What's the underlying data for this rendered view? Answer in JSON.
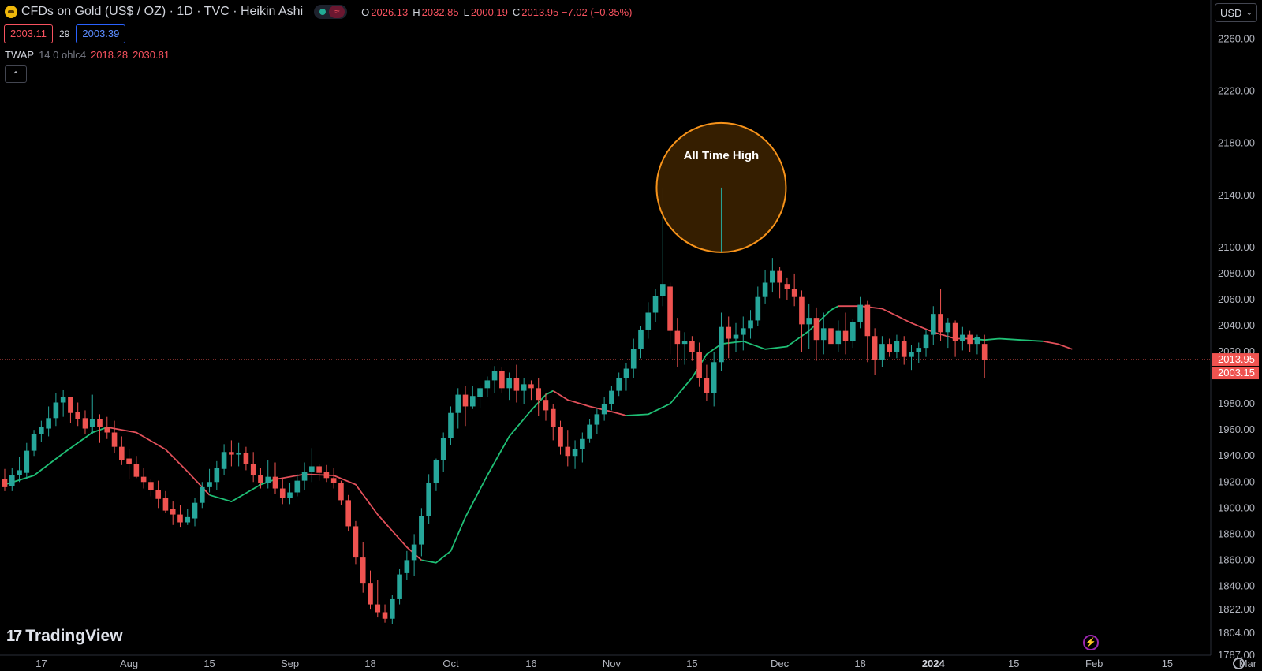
{
  "header": {
    "title": "CFDs on Gold (US$ / OZ) · 1D · TVC · Heikin Ashi",
    "ohlc": [
      {
        "k": "O",
        "v": "2026.13"
      },
      {
        "k": "H",
        "v": "2032.85"
      },
      {
        "k": "L",
        "v": "2000.19"
      },
      {
        "k": "C",
        "v": "2013.95 −7.02 (−0.35%)"
      }
    ],
    "bid": "2003.11",
    "spread": "29",
    "ask": "2003.39",
    "currency": "USD"
  },
  "indicator": {
    "name": "TWAP",
    "params": "14 0 ohlc4",
    "value1": "2018.28",
    "value2": "2030.81"
  },
  "brand": {
    "name": "TradingView"
  },
  "colors": {
    "up": "#26a69a",
    "down": "#ef5350",
    "twap_up": "#1fbf75",
    "twap_down": "#e2505a",
    "highlight": "#f7931a"
  },
  "chart_data": {
    "type": "candlestick",
    "style": "Heikin Ashi",
    "annotation": {
      "label": "All Time High",
      "date": "Dec 4",
      "price": 2146
    },
    "ylim": [
      1787,
      2290
    ],
    "y_ticks": [
      2260,
      2220,
      2180,
      2140,
      2100,
      2080,
      2060,
      2040,
      2020,
      1980,
      1960,
      1940,
      1920,
      1900,
      1880,
      1860,
      1840,
      1822,
      1804,
      1787
    ],
    "x_ticks": [
      "17",
      "Aug",
      "15",
      "Sep",
      "18",
      "Oct",
      "16",
      "Nov",
      "15",
      "Dec",
      "18",
      "2024",
      "15",
      "Feb",
      "15",
      "Mar"
    ],
    "price_labels": [
      {
        "value": 2013.95,
        "text": "2013.95"
      },
      {
        "value": 2003.15,
        "text": "2003.15"
      }
    ],
    "candles": [
      [
        1922,
        1930,
        1913,
        1916
      ],
      [
        1917,
        1931,
        1913,
        1925
      ],
      [
        1925,
        1939,
        1920,
        1929
      ],
      [
        1927,
        1950,
        1922,
        1944
      ],
      [
        1944,
        1960,
        1940,
        1957
      ],
      [
        1957,
        1967,
        1951,
        1962
      ],
      [
        1961,
        1978,
        1955,
        1969
      ],
      [
        1969,
        1988,
        1963,
        1981
      ],
      [
        1981,
        1991,
        1970,
        1985
      ],
      [
        1985,
        1985,
        1965,
        1973
      ],
      [
        1974,
        1981,
        1963,
        1968
      ],
      [
        1969,
        1975,
        1957,
        1961
      ],
      [
        1962,
        1987,
        1957,
        1968
      ],
      [
        1968,
        1972,
        1950,
        1962
      ],
      [
        1962,
        1970,
        1953,
        1958
      ],
      [
        1958,
        1967,
        1942,
        1947
      ],
      [
        1947,
        1955,
        1933,
        1937
      ],
      [
        1938,
        1945,
        1922,
        1934
      ],
      [
        1934,
        1940,
        1923,
        1924
      ],
      [
        1924,
        1931,
        1915,
        1920
      ],
      [
        1920,
        1922,
        1909,
        1914
      ],
      [
        1914,
        1921,
        1900,
        1907
      ],
      [
        1908,
        1913,
        1896,
        1898
      ],
      [
        1899,
        1905,
        1887,
        1895
      ],
      [
        1895,
        1902,
        1885,
        1889
      ],
      [
        1889,
        1899,
        1887,
        1893
      ],
      [
        1892,
        1908,
        1886,
        1904
      ],
      [
        1904,
        1920,
        1900,
        1916
      ],
      [
        1916,
        1930,
        1912,
        1920
      ],
      [
        1920,
        1936,
        1914,
        1931
      ],
      [
        1930,
        1949,
        1925,
        1943
      ],
      [
        1943,
        1952,
        1932,
        1941
      ],
      [
        1941,
        1950,
        1932,
        1942
      ],
      [
        1942,
        1947,
        1929,
        1934
      ],
      [
        1934,
        1943,
        1920,
        1925
      ],
      [
        1925,
        1931,
        1915,
        1919
      ],
      [
        1919,
        1937,
        1915,
        1924
      ],
      [
        1924,
        1935,
        1911,
        1915
      ],
      [
        1915,
        1922,
        1903,
        1908
      ],
      [
        1908,
        1919,
        1903,
        1912
      ],
      [
        1912,
        1926,
        1909,
        1921
      ],
      [
        1921,
        1935,
        1914,
        1928
      ],
      [
        1928,
        1946,
        1920,
        1932
      ],
      [
        1932,
        1934,
        1921,
        1927
      ],
      [
        1928,
        1933,
        1920,
        1923
      ],
      [
        1923,
        1931,
        1915,
        1919
      ],
      [
        1919,
        1921,
        1902,
        1906
      ],
      [
        1906,
        1910,
        1882,
        1886
      ],
      [
        1886,
        1890,
        1857,
        1862
      ],
      [
        1862,
        1874,
        1835,
        1842
      ],
      [
        1842,
        1852,
        1822,
        1826
      ],
      [
        1826,
        1845,
        1816,
        1820
      ],
      [
        1820,
        1826,
        1812,
        1815
      ],
      [
        1815,
        1833,
        1811,
        1830
      ],
      [
        1830,
        1853,
        1826,
        1849
      ],
      [
        1850,
        1867,
        1845,
        1860
      ],
      [
        1860,
        1880,
        1848,
        1872
      ],
      [
        1872,
        1900,
        1863,
        1894
      ],
      [
        1894,
        1926,
        1888,
        1919
      ],
      [
        1919,
        1938,
        1913,
        1937
      ],
      [
        1937,
        1958,
        1928,
        1954
      ],
      [
        1954,
        1978,
        1948,
        1973
      ],
      [
        1973,
        1992,
        1961,
        1987
      ],
      [
        1987,
        1994,
        1963,
        1978
      ],
      [
        1978,
        1994,
        1976,
        1986
      ],
      [
        1985,
        1994,
        1977,
        1992
      ],
      [
        1992,
        2001,
        1985,
        1998
      ],
      [
        1998,
        2009,
        1988,
        2005
      ],
      [
        2005,
        2008,
        1988,
        1992
      ],
      [
        1992,
        2004,
        1983,
        2000
      ],
      [
        2000,
        2010,
        1981,
        1990
      ],
      [
        1990,
        2000,
        1980,
        1995
      ],
      [
        1995,
        1998,
        1983,
        1992
      ],
      [
        1992,
        2000,
        1971,
        1983
      ],
      [
        1983,
        1988,
        1967,
        1975
      ],
      [
        1976,
        1980,
        1952,
        1962
      ],
      [
        1962,
        1967,
        1941,
        1947
      ],
      [
        1947,
        1960,
        1932,
        1940
      ],
      [
        1940,
        1952,
        1930,
        1945
      ],
      [
        1945,
        1958,
        1935,
        1953
      ],
      [
        1953,
        1968,
        1950,
        1964
      ],
      [
        1964,
        1976,
        1957,
        1972
      ],
      [
        1972,
        1985,
        1967,
        1980
      ],
      [
        1980,
        1994,
        1975,
        1990
      ],
      [
        1990,
        2004,
        1986,
        2000
      ],
      [
        2000,
        2011,
        1990,
        2007
      ],
      [
        2007,
        2030,
        2000,
        2022
      ],
      [
        2022,
        2040,
        2015,
        2037
      ],
      [
        2037,
        2058,
        2030,
        2050
      ],
      [
        2050,
        2068,
        2043,
        2063
      ],
      [
        2063,
        2146,
        2055,
        2072
      ],
      [
        2070,
        2073,
        2018,
        2036
      ],
      [
        2036,
        2046,
        2008,
        2026
      ],
      [
        2026,
        2035,
        2010,
        2028
      ],
      [
        2028,
        2032,
        2013,
        2020
      ],
      [
        2020,
        2027,
        1993,
        2000
      ],
      [
        2000,
        2010,
        1982,
        1988
      ],
      [
        1988,
        2020,
        1978,
        2012
      ],
      [
        2012,
        2050,
        2005,
        2039
      ],
      [
        2039,
        2047,
        2015,
        2030
      ],
      [
        2030,
        2042,
        2020,
        2033
      ],
      [
        2033,
        2047,
        2021,
        2038
      ],
      [
        2038,
        2052,
        2030,
        2044
      ],
      [
        2044,
        2070,
        2040,
        2062
      ],
      [
        2062,
        2083,
        2057,
        2073
      ],
      [
        2073,
        2092,
        2066,
        2082
      ],
      [
        2082,
        2085,
        2061,
        2073
      ],
      [
        2072,
        2077,
        2060,
        2068
      ],
      [
        2068,
        2080,
        2055,
        2062
      ],
      [
        2062,
        2067,
        2020,
        2041
      ],
      [
        2041,
        2057,
        2022,
        2046
      ],
      [
        2046,
        2054,
        2013,
        2029
      ],
      [
        2029,
        2050,
        2018,
        2038
      ],
      [
        2038,
        2045,
        2016,
        2026
      ],
      [
        2026,
        2044,
        2020,
        2036
      ],
      [
        2036,
        2050,
        2018,
        2028
      ],
      [
        2028,
        2045,
        2023,
        2043
      ],
      [
        2043,
        2062,
        2038,
        2056
      ],
      [
        2056,
        2059,
        2012,
        2032
      ],
      [
        2032,
        2038,
        2002,
        2014
      ],
      [
        2014,
        2032,
        2008,
        2026
      ],
      [
        2026,
        2030,
        2016,
        2020
      ],
      [
        2020,
        2033,
        2015,
        2028
      ],
      [
        2028,
        2032,
        2010,
        2016
      ],
      [
        2016,
        2025,
        2006,
        2020
      ],
      [
        2020,
        2027,
        2011,
        2023
      ],
      [
        2023,
        2037,
        2016,
        2033
      ],
      [
        2033,
        2055,
        2025,
        2049
      ],
      [
        2049,
        2068,
        2028,
        2035
      ],
      [
        2035,
        2046,
        2023,
        2042
      ],
      [
        2042,
        2044,
        2016,
        2028
      ],
      [
        2028,
        2039,
        2021,
        2033
      ],
      [
        2033,
        2036,
        2020,
        2026
      ],
      [
        2026,
        2033,
        2018,
        2031
      ],
      [
        2026,
        2033,
        2000,
        2014
      ]
    ],
    "twap": {
      "segments": [
        {
          "trend": "up",
          "points": [
            [
              0,
              1918
            ],
            [
              4,
              1925
            ],
            [
              8,
              1942
            ],
            [
              12,
              1958
            ],
            [
              14,
              1962
            ]
          ]
        },
        {
          "trend": "down",
          "points": [
            [
              14,
              1962
            ],
            [
              18,
              1958
            ],
            [
              22,
              1945
            ],
            [
              25,
              1928
            ],
            [
              28,
              1910
            ]
          ]
        },
        {
          "trend": "up",
          "points": [
            [
              28,
              1910
            ],
            [
              31,
              1905
            ],
            [
              35,
              1918
            ],
            [
              37,
              1922
            ]
          ]
        },
        {
          "trend": "down",
          "points": [
            [
              37,
              1922
            ],
            [
              41,
              1926
            ],
            [
              45,
              1925
            ],
            [
              48,
              1918
            ],
            [
              51,
              1895
            ],
            [
              55,
              1870
            ],
            [
              57,
              1860
            ]
          ]
        },
        {
          "trend": "up",
          "points": [
            [
              57,
              1860
            ],
            [
              59,
              1858
            ],
            [
              61,
              1867
            ],
            [
              63,
              1893
            ],
            [
              66,
              1925
            ],
            [
              69,
              1955
            ],
            [
              72,
              1975
            ],
            [
              74,
              1987
            ],
            [
              75,
              1990
            ]
          ]
        },
        {
          "trend": "down",
          "points": [
            [
              75,
              1990
            ],
            [
              77,
              1983
            ],
            [
              80,
              1978
            ],
            [
              83,
              1974
            ],
            [
              85,
              1971
            ]
          ]
        },
        {
          "trend": "up",
          "points": [
            [
              85,
              1971
            ],
            [
              88,
              1972
            ],
            [
              91,
              1980
            ],
            [
              94,
              2000
            ],
            [
              96,
              2018
            ],
            [
              98,
              2026
            ],
            [
              101,
              2028
            ],
            [
              104,
              2022
            ],
            [
              107,
              2024
            ],
            [
              110,
              2036
            ],
            [
              113,
              2052
            ],
            [
              114,
              2055
            ]
          ]
        },
        {
          "trend": "down",
          "points": [
            [
              114,
              2055
            ],
            [
              117,
              2055
            ],
            [
              120,
              2053
            ],
            [
              124,
              2042
            ],
            [
              127,
              2035
            ],
            [
              130,
              2030
            ],
            [
              132,
              2030
            ]
          ]
        },
        {
          "trend": "up",
          "points": [
            [
              132,
              2030
            ],
            [
              134,
              2029
            ],
            [
              136,
              2030
            ],
            [
              139,
              2029
            ],
            [
              142,
              2028
            ]
          ]
        },
        {
          "trend": "down",
          "points": [
            [
              142,
              2028
            ],
            [
              144,
              2026
            ],
            [
              146,
              2022
            ]
          ]
        }
      ]
    }
  }
}
